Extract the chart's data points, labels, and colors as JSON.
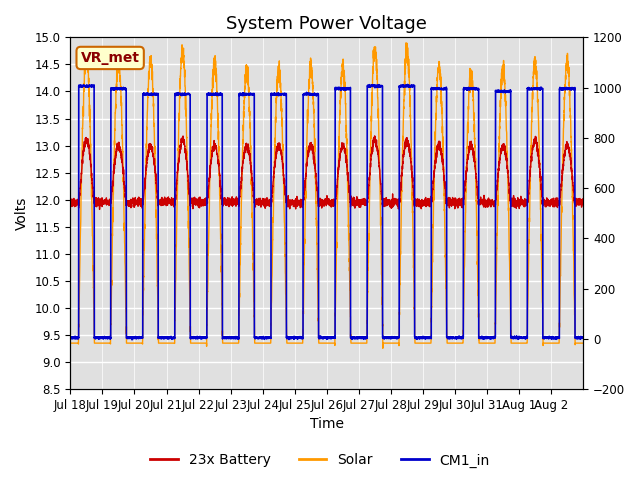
{
  "title": "System Power Voltage",
  "xlabel": "Time",
  "ylabel_left": "Volts",
  "ylim_left": [
    8.5,
    15.0
  ],
  "ylim_right": [
    -200,
    1200
  ],
  "xtick_labels": [
    "Jul 18",
    "Jul 19",
    "Jul 20",
    "Jul 21",
    "Jul 22",
    "Jul 23",
    "Jul 24",
    "Jul 25",
    "Jul 26",
    "Jul 27",
    "Jul 28",
    "Jul 29",
    "Jul 30",
    "Jul 31",
    "Aug 1",
    "Aug 2"
  ],
  "legend_labels": [
    "23x Battery",
    "Solar",
    "CM1_in"
  ],
  "legend_colors": [
    "#cc0000",
    "#ff9900",
    "#0000cc"
  ],
  "annotation_text": "VR_met",
  "annotation_fgcolor": "#8B0000",
  "annotation_bgcolor": "#ffffcc",
  "annotation_edgecolor": "#cc6600",
  "background_inner": "#e0e0e0",
  "grid_color": "#ffffff",
  "title_fontsize": 13,
  "axis_fontsize": 10,
  "tick_fontsize": 8.5,
  "legend_fontsize": 10,
  "n_days": 16,
  "yticks_left": [
    8.5,
    9.0,
    9.5,
    10.0,
    10.5,
    11.0,
    11.5,
    12.0,
    12.5,
    13.0,
    13.5,
    14.0,
    14.5,
    15.0
  ],
  "yticks_right": [
    -200,
    0,
    200,
    400,
    600,
    800,
    1000,
    1200
  ],
  "solar_peaks": [
    14.7,
    14.55,
    14.6,
    14.75,
    14.55,
    14.4,
    14.4,
    14.45,
    14.45,
    14.75,
    14.75,
    14.45,
    14.35,
    14.4,
    14.55,
    14.55
  ],
  "battery_peaks": [
    13.1,
    13.0,
    13.0,
    13.1,
    13.0,
    13.0,
    13.0,
    13.0,
    13.0,
    13.1,
    13.1,
    13.0,
    13.0,
    13.0,
    13.1,
    13.0
  ],
  "cm1_day_vals": [
    14.1,
    14.05,
    13.95,
    13.95,
    13.95,
    13.95,
    13.95,
    13.95,
    14.05,
    14.1,
    14.1,
    14.05,
    14.05,
    14.0,
    14.05,
    14.05
  ],
  "battery_night": 11.95,
  "solar_night": 9.35,
  "cm1_night": 9.45
}
